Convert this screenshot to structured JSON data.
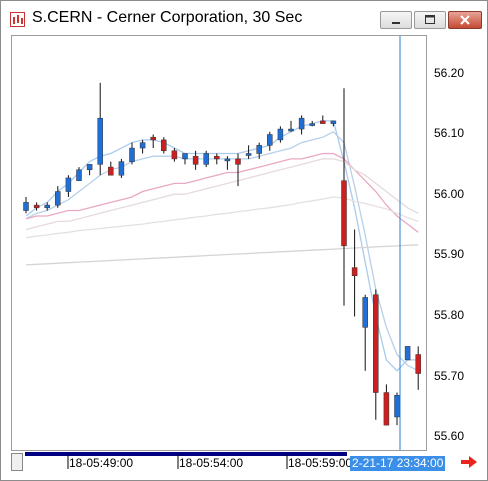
{
  "window": {
    "title": "S.CERN - Cerner Corporation, 30 Sec",
    "icon": "chart-app-icon",
    "buttons": [
      "minimize-icon",
      "maximize-icon",
      "close-icon"
    ]
  },
  "chart": {
    "y_ticks": [
      "56.20",
      "56.10",
      "56.00",
      "55.90",
      "55.80",
      "55.70",
      "55.60"
    ],
    "x_ticks": [
      "18-05:49:00",
      "18-05:54:00",
      "18-05:59:00"
    ],
    "cursor_time": "2-21-17 23:34:00",
    "nav_icon": "arrow-right-icon",
    "colors": {
      "up": "#1f6fd6",
      "down": "#cc1f1f",
      "cursor": "#2a7fd4",
      "badge": "#3b8fe8"
    }
  },
  "chart_data": {
    "type": "candlestick",
    "ylim": [
      55.58,
      56.25
    ],
    "candles": [
      {
        "open": 55.995,
        "high": 56.02,
        "low": 55.99,
        "close": 56.01
      },
      {
        "open": 56.005,
        "high": 56.01,
        "low": 55.995,
        "close": 56.0
      },
      {
        "open": 56.0,
        "high": 56.01,
        "low": 55.995,
        "close": 56.005
      },
      {
        "open": 56.005,
        "high": 56.04,
        "low": 56.0,
        "close": 56.03
      },
      {
        "open": 56.03,
        "high": 56.06,
        "low": 56.02,
        "close": 56.055
      },
      {
        "open": 56.05,
        "high": 56.075,
        "low": 56.05,
        "close": 56.07
      },
      {
        "open": 56.07,
        "high": 56.08,
        "low": 56.06,
        "close": 56.08
      },
      {
        "open": 56.08,
        "high": 56.23,
        "low": 56.06,
        "close": 56.165
      },
      {
        "open": 56.075,
        "high": 56.085,
        "low": 56.06,
        "close": 56.06
      },
      {
        "open": 56.06,
        "high": 56.09,
        "low": 56.055,
        "close": 56.085
      },
      {
        "open": 56.085,
        "high": 56.12,
        "low": 56.08,
        "close": 56.11
      },
      {
        "open": 56.11,
        "high": 56.125,
        "low": 56.1,
        "close": 56.12
      },
      {
        "open": 56.13,
        "high": 56.135,
        "low": 56.11,
        "close": 56.125
      },
      {
        "open": 56.125,
        "high": 56.13,
        "low": 56.1,
        "close": 56.105
      },
      {
        "open": 56.105,
        "high": 56.11,
        "low": 56.085,
        "close": 56.09
      },
      {
        "open": 56.09,
        "high": 56.1,
        "low": 56.08,
        "close": 56.1
      },
      {
        "open": 56.095,
        "high": 56.105,
        "low": 56.07,
        "close": 56.08
      },
      {
        "open": 56.08,
        "high": 56.105,
        "low": 56.075,
        "close": 56.1
      },
      {
        "open": 56.095,
        "high": 56.1,
        "low": 56.08,
        "close": 56.09
      },
      {
        "open": 56.09,
        "high": 56.095,
        "low": 56.07,
        "close": 56.09
      },
      {
        "open": 56.09,
        "high": 56.1,
        "low": 56.04,
        "close": 56.08
      },
      {
        "open": 56.1,
        "high": 56.115,
        "low": 56.09,
        "close": 56.1
      },
      {
        "open": 56.1,
        "high": 56.12,
        "low": 56.09,
        "close": 56.115
      },
      {
        "open": 56.115,
        "high": 56.14,
        "low": 56.105,
        "close": 56.135
      },
      {
        "open": 56.125,
        "high": 56.15,
        "low": 56.12,
        "close": 56.145
      },
      {
        "open": 56.145,
        "high": 56.16,
        "low": 56.14,
        "close": 56.145
      },
      {
        "open": 56.145,
        "high": 56.17,
        "low": 56.135,
        "close": 56.165
      },
      {
        "open": 56.155,
        "high": 56.16,
        "low": 56.15,
        "close": 56.155
      },
      {
        "open": 56.16,
        "high": 56.17,
        "low": 56.155,
        "close": 56.155
      },
      {
        "open": 56.155,
        "high": 56.16,
        "low": 56.15,
        "close": 56.16
      },
      {
        "open": 56.05,
        "high": 56.22,
        "low": 55.82,
        "close": 55.93
      },
      {
        "open": 55.89,
        "high": 55.96,
        "low": 55.8,
        "close": 55.875
      },
      {
        "open": 55.78,
        "high": 55.84,
        "low": 55.7,
        "close": 55.835
      },
      {
        "open": 55.84,
        "high": 55.85,
        "low": 55.61,
        "close": 55.66
      },
      {
        "open": 55.66,
        "high": 55.675,
        "low": 55.6,
        "close": 55.6
      },
      {
        "open": 55.615,
        "high": 55.66,
        "low": 55.6,
        "close": 55.655
      },
      {
        "open": 55.72,
        "high": 55.745,
        "low": 55.72,
        "close": 55.745
      },
      {
        "open": 55.73,
        "high": 55.745,
        "low": 55.665,
        "close": 55.695
      }
    ],
    "series": [
      {
        "color": "#a9cbee",
        "values": [
          55.985,
          56.0,
          56.01,
          56.03,
          56.045,
          56.065,
          56.085,
          56.095,
          56.1,
          56.11,
          56.12,
          56.125,
          56.125,
          56.12,
          56.11,
          56.1,
          56.1,
          56.1,
          56.1,
          56.1,
          56.1,
          56.105,
          56.11,
          56.115,
          56.13,
          56.14,
          56.15,
          56.155,
          56.16,
          56.16,
          56.085,
          56.0,
          55.9,
          55.8,
          55.72,
          55.7,
          55.72,
          55.72
        ]
      },
      {
        "color": "#b7d0ea",
        "values": [
          55.98,
          55.99,
          55.995,
          56.005,
          56.015,
          56.03,
          56.045,
          56.06,
          56.07,
          56.075,
          56.085,
          56.09,
          56.095,
          56.095,
          56.095,
          56.09,
          56.09,
          56.09,
          56.09,
          56.09,
          56.09,
          56.09,
          56.095,
          56.1,
          56.105,
          56.11,
          56.12,
          56.125,
          56.13,
          56.14,
          56.12,
          56.04,
          55.95,
          55.85,
          55.78,
          55.73,
          55.71,
          55.7
        ]
      },
      {
        "color": "#e9a8c3",
        "values": [
          55.98,
          55.985,
          55.985,
          55.99,
          55.995,
          55.995,
          56.0,
          56.005,
          56.01,
          56.015,
          56.02,
          56.03,
          56.035,
          56.04,
          56.045,
          56.045,
          56.05,
          56.055,
          56.06,
          56.065,
          56.065,
          56.07,
          56.075,
          56.08,
          56.085,
          56.09,
          56.09,
          56.095,
          56.1,
          56.1,
          56.09,
          56.07,
          56.05,
          56.03,
          56.005,
          55.985,
          55.97,
          55.955
        ]
      },
      {
        "color": "#e5dadd",
        "values": [
          55.96,
          55.965,
          55.97,
          55.975,
          55.975,
          55.98,
          55.985,
          55.99,
          55.995,
          56.0,
          56.005,
          56.01,
          56.015,
          56.02,
          56.025,
          56.025,
          56.03,
          56.035,
          56.04,
          56.045,
          56.05,
          56.055,
          56.06,
          56.065,
          56.07,
          56.075,
          56.08,
          56.085,
          56.09,
          56.09,
          56.085,
          56.07,
          56.06,
          56.045,
          56.03,
          56.015,
          56.0,
          55.99
        ]
      },
      {
        "color": "#e5e0e0",
        "values": [
          55.945,
          55.948,
          55.95,
          55.953,
          55.955,
          55.958,
          55.96,
          55.962,
          55.964,
          55.966,
          55.968,
          55.97,
          55.973,
          55.975,
          55.978,
          55.98,
          55.983,
          55.985,
          55.988,
          55.99,
          55.993,
          55.995,
          55.998,
          56.0,
          56.003,
          56.006,
          56.01,
          56.013,
          56.016,
          56.02,
          56.018,
          56.012,
          56.008,
          56.003,
          55.998,
          55.99,
          55.982,
          55.975
        ]
      },
      {
        "color": "#d8d3d3",
        "values": [
          55.895,
          55.896,
          55.897,
          55.898,
          55.899,
          55.9,
          55.901,
          55.902,
          55.903,
          55.904,
          55.905,
          55.906,
          55.907,
          55.908,
          55.909,
          55.91,
          55.911,
          55.912,
          55.913,
          55.914,
          55.915,
          55.916,
          55.917,
          55.918,
          55.919,
          55.92,
          55.921,
          55.922,
          55.923,
          55.924,
          55.925,
          55.926,
          55.927,
          55.928,
          55.929,
          55.93,
          55.931,
          55.932
        ]
      }
    ]
  }
}
